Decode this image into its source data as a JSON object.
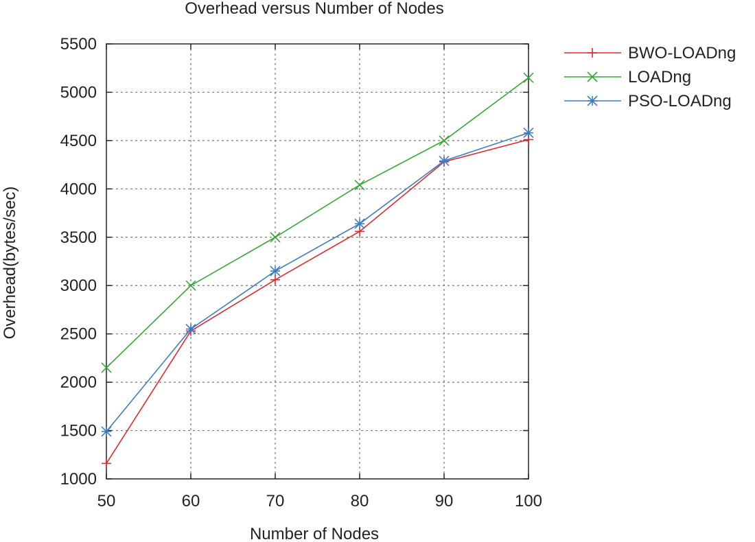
{
  "chart_data": {
    "type": "line",
    "title": "Overhead versus Number of Nodes",
    "xlabel": "Number of Nodes",
    "ylabel": "Overhead(bytes/sec)",
    "x": [
      50,
      60,
      70,
      80,
      90,
      100
    ],
    "xlim": [
      50,
      100
    ],
    "ylim": [
      1000,
      5500
    ],
    "xticks": [
      50,
      60,
      70,
      80,
      90,
      100
    ],
    "yticks": [
      1000,
      1500,
      2000,
      2500,
      3000,
      3500,
      4000,
      4500,
      5000,
      5500
    ],
    "grid": true,
    "legend_position": "outside-top-right",
    "series": [
      {
        "name": "BWO-LOADng",
        "color": "#e8262b",
        "marker": "plus",
        "values": [
          1160,
          2530,
          3060,
          3560,
          4280,
          4510
        ]
      },
      {
        "name": "LOADng",
        "color": "#35a835",
        "marker": "x",
        "values": [
          2150,
          3000,
          3500,
          4040,
          4500,
          5150
        ]
      },
      {
        "name": "PSO-LOADng",
        "color": "#3a7dc4",
        "marker": "star",
        "values": [
          1490,
          2550,
          3150,
          3640,
          4290,
          4580
        ]
      }
    ]
  }
}
